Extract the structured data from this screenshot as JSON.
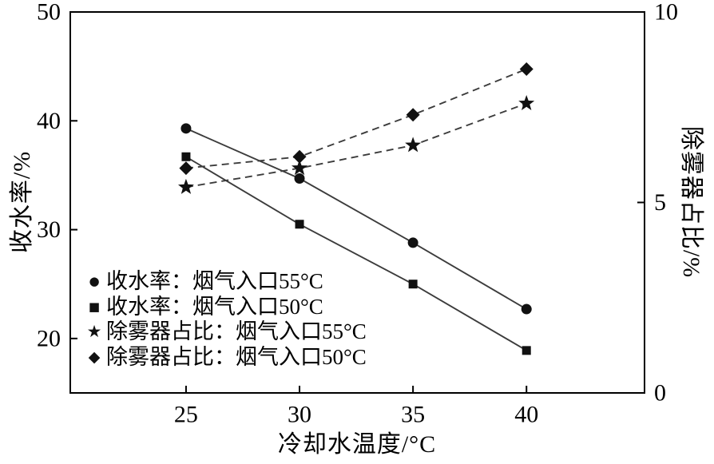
{
  "chart_data": {
    "type": "line",
    "title": "",
    "x": [
      25,
      30,
      35,
      40
    ],
    "x_axis": {
      "label": "冷却水温度/°C",
      "min": 19.9,
      "max": 45.2,
      "ticks": [
        25,
        30,
        35,
        40
      ]
    },
    "left_axis": {
      "label": "收水率/%",
      "min": 15,
      "max": 50,
      "ticks": [
        20,
        30,
        40,
        50
      ]
    },
    "right_axis": {
      "label": "除雾器占比/%",
      "min": 0,
      "max": 10,
      "ticks": [
        0,
        5,
        10
      ]
    },
    "grid": false,
    "legend_position": "inside-bottom-left",
    "series": [
      {
        "name": "收水率：烟气入口55°C",
        "axis": "left",
        "marker": "circle",
        "marker_glyph": "●",
        "line_style": "solid",
        "values": [
          39.3,
          34.7,
          28.8,
          22.7
        ]
      },
      {
        "name": "收水率：烟气入口50°C",
        "axis": "left",
        "marker": "square",
        "marker_glyph": "■",
        "line_style": "solid",
        "values": [
          36.7,
          30.5,
          25.0,
          18.9
        ]
      },
      {
        "name": "除雾器占比：烟气入口55°C",
        "axis": "right",
        "marker": "star",
        "marker_glyph": "★",
        "line_style": "dashed",
        "values": [
          5.4,
          5.9,
          6.5,
          7.6
        ]
      },
      {
        "name": "除雾器占比：烟气入口50°C",
        "axis": "right",
        "marker": "diamond",
        "marker_glyph": "◆",
        "line_style": "dashed",
        "values": [
          5.9,
          6.2,
          7.3,
          8.5
        ]
      }
    ],
    "colors": {
      "line": "#3c3c3c",
      "marker": "#111111",
      "axis": "#000000"
    }
  }
}
